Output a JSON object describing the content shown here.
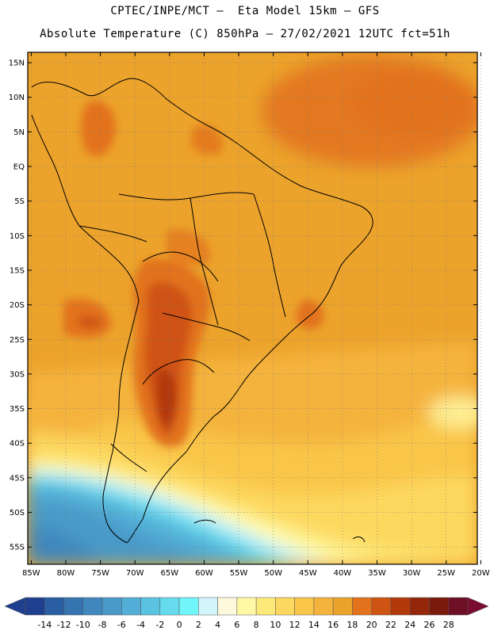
{
  "header": {
    "line1": "CPTEC/INPE/MCT –  Eta Model 15km – GFS",
    "line2": "Absolute Temperature (C) 850hPa – 27/02/2021 12UTC fct=51h"
  },
  "map": {
    "lat_labels": [
      "15N",
      "10N",
      "5N",
      "EQ",
      "5S",
      "10S",
      "15S",
      "20S",
      "25S",
      "30S",
      "35S",
      "40S",
      "45S",
      "50S",
      "55S"
    ],
    "lon_labels": [
      "85W",
      "80W",
      "75W",
      "70W",
      "65W",
      "60W",
      "55W",
      "50W",
      "45W",
      "40W",
      "35W",
      "30W",
      "25W",
      "20W"
    ],
    "lat_values": [
      15,
      10,
      5,
      0,
      -5,
      -10,
      -15,
      -20,
      -25,
      -30,
      -35,
      -40,
      -45,
      -50,
      -55
    ],
    "lon_values": [
      -85,
      -80,
      -75,
      -70,
      -65,
      -60,
      -55,
      -50,
      -45,
      -40,
      -35,
      -30,
      -25,
      -20
    ],
    "lat_range": [
      -57.5,
      16.5
    ],
    "lon_range": [
      -85.5,
      -20.5
    ],
    "grid": "dotted",
    "field": "temperature",
    "level": "850hPa"
  },
  "colorbar": {
    "labels": [
      "-14",
      "-12",
      "-10",
      "-8",
      "-6",
      "-4",
      "-2",
      "0",
      "2",
      "4",
      "6",
      "8",
      "10",
      "12",
      "14",
      "16",
      "18",
      "20",
      "22",
      "24",
      "26",
      "28"
    ],
    "colors": [
      "#1f3f8f",
      "#2a5ea3",
      "#3574b0",
      "#3f87bd",
      "#4a9ac8",
      "#52aed6",
      "#5bc3e2",
      "#66dbee",
      "#70f5fb",
      "#d2f5fb",
      "#fef8dd",
      "#fff9a6",
      "#fde97a",
      "#fdd85e",
      "#f9c64a",
      "#f4b33c",
      "#eca32c",
      "#e2721c",
      "#cf5312",
      "#b2390c",
      "#94270a",
      "#7a1a0c",
      "#6e0f25"
    ]
  }
}
